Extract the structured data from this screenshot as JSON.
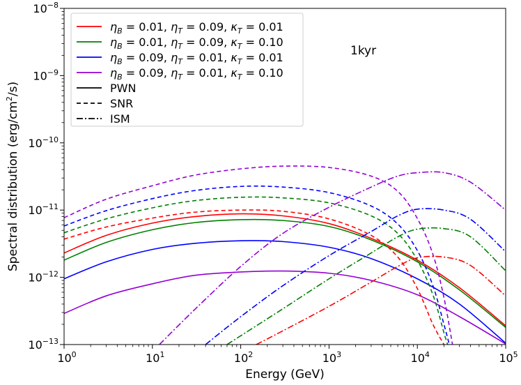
{
  "chart_data": {
    "type": "line",
    "title": "",
    "annotation": "1kyr",
    "xlabel": "Energy (GeV)",
    "ylabel_prefix": "Spectral distribution (erg/cm",
    "ylabel_sup": "2",
    "ylabel_suffix": "/s)",
    "xscale": "log",
    "yscale": "log",
    "xlim": [
      1,
      100000
    ],
    "ylim": [
      1e-13,
      1e-08
    ],
    "x_ticks": [
      {
        "base": "10",
        "exp": "0",
        "value": 1
      },
      {
        "base": "10",
        "exp": "1",
        "value": 10
      },
      {
        "base": "10",
        "exp": "2",
        "value": 100
      },
      {
        "base": "10",
        "exp": "3",
        "value": 1000
      },
      {
        "base": "10",
        "exp": "4",
        "value": 10000
      },
      {
        "base": "10",
        "exp": "5",
        "value": 100000
      }
    ],
    "y_ticks": [
      {
        "base": "10",
        "exp": "−13",
        "value": 1e-13
      },
      {
        "base": "10",
        "exp": "−12",
        "value": 1e-12
      },
      {
        "base": "10",
        "exp": "−11",
        "value": 1e-11
      },
      {
        "base": "10",
        "exp": "−10",
        "value": 1e-10
      },
      {
        "base": "10",
        "exp": "−9",
        "value": 1e-09
      },
      {
        "base": "10",
        "exp": "−8",
        "value": 1e-08
      }
    ],
    "legend": {
      "placement": "top-left",
      "entries": [
        {
          "kind": "color",
          "color": "#ff0000",
          "style": "solid",
          "text": "ηB = 0.01, ηT = 0.09, κT = 0.01"
        },
        {
          "kind": "color",
          "color": "#008000",
          "style": "solid",
          "text": "ηB = 0.01, ηT = 0.09, κT = 0.10"
        },
        {
          "kind": "color",
          "color": "#0000ff",
          "style": "solid",
          "text": "ηB = 0.09, ηT = 0.01, κT = 0.01"
        },
        {
          "kind": "color",
          "color": "#9400d3",
          "style": "solid",
          "text": "ηB = 0.09, ηT = 0.01, κT = 0.10"
        },
        {
          "kind": "style",
          "color": "#000000",
          "style": "solid",
          "text": "PWN"
        },
        {
          "kind": "style",
          "color": "#000000",
          "style": "dashed",
          "text": "SNR"
        },
        {
          "kind": "style",
          "color": "#000000",
          "style": "dashdot",
          "text": "ISM"
        }
      ]
    },
    "series": [
      {
        "name": "red PWN",
        "color": "#ff0000",
        "style": "solid",
        "x": [
          1,
          3,
          10,
          30,
          100,
          300,
          1000,
          3000,
          10000,
          30000,
          100000
        ],
        "y": [
          2.3e-12,
          4.2e-12,
          6.4e-12,
          8e-12,
          8.8e-12,
          8.2e-12,
          6.3e-12,
          3.8e-12,
          1.8e-12,
          7e-13,
          1.9e-13
        ]
      },
      {
        "name": "green PWN",
        "color": "#008000",
        "style": "solid",
        "x": [
          1,
          3,
          10,
          30,
          100,
          300,
          1000,
          3000,
          10000,
          30000,
          100000
        ],
        "y": [
          1.8e-12,
          3.3e-12,
          5.1e-12,
          6.5e-12,
          7.2e-12,
          7e-12,
          5.7e-12,
          3.6e-12,
          1.7e-12,
          6.5e-13,
          1.8e-13
        ]
      },
      {
        "name": "blue PWN",
        "color": "#0000ff",
        "style": "solid",
        "x": [
          1,
          3,
          10,
          30,
          100,
          300,
          1000,
          3000,
          10000,
          30000,
          100000
        ],
        "y": [
          9.5e-13,
          1.7e-12,
          2.6e-12,
          3.2e-12,
          3.5e-12,
          3.4e-12,
          2.8e-12,
          1.9e-12,
          9.5e-13,
          4e-13,
          1.05e-13
        ]
      },
      {
        "name": "purple PWN",
        "color": "#9400d3",
        "style": "solid",
        "x": [
          1,
          3,
          10,
          30,
          100,
          300,
          1000,
          3000,
          10000,
          30000,
          100000
        ],
        "y": [
          2.9e-13,
          5.3e-13,
          8e-13,
          1.07e-12,
          1.2e-12,
          1.24e-12,
          1.15e-12,
          9e-13,
          5.5e-13,
          2.6e-13,
          1.02e-13
        ]
      },
      {
        "name": "red SNR",
        "color": "#ff0000",
        "style": "dashed",
        "x": [
          1,
          3,
          10,
          30,
          100,
          300,
          1000,
          3000,
          6000,
          10000,
          15000,
          20000
        ],
        "y": [
          3.7e-12,
          5.6e-12,
          7.6e-12,
          9.3e-12,
          1e-11,
          9.6e-12,
          7.4e-12,
          4.2e-12,
          2e-12,
          6.8e-13,
          2e-13,
          1e-13
        ]
      },
      {
        "name": "green SNR",
        "color": "#008000",
        "style": "dashed",
        "x": [
          1,
          3,
          10,
          30,
          100,
          300,
          1000,
          3000,
          6000,
          10000,
          15000,
          20000,
          22000
        ],
        "y": [
          4.6e-12,
          7.4e-12,
          1.08e-11,
          1.38e-11,
          1.55e-11,
          1.52e-11,
          1.28e-11,
          8.2e-12,
          4.5e-12,
          1.8e-12,
          5.5e-13,
          1.5e-13,
          1e-13
        ]
      },
      {
        "name": "blue SNR",
        "color": "#0000ff",
        "style": "dashed",
        "x": [
          1,
          3,
          10,
          30,
          100,
          300,
          1000,
          3000,
          6000,
          10000,
          15000,
          20000,
          23000
        ],
        "y": [
          5.8e-12,
          9.8e-12,
          1.48e-11,
          1.95e-11,
          2.25e-11,
          2.2e-11,
          1.82e-11,
          1.15e-11,
          6.2e-12,
          2.5e-12,
          7.5e-13,
          2e-13,
          1e-13
        ]
      },
      {
        "name": "purple SNR",
        "color": "#9400d3",
        "style": "dashed",
        "x": [
          1,
          3,
          10,
          30,
          100,
          300,
          1000,
          3000,
          6000,
          10000,
          15000,
          20000,
          25000
        ],
        "y": [
          7.7e-12,
          1.45e-11,
          2.3e-11,
          3.3e-11,
          4.1e-11,
          4.5e-11,
          4.3e-11,
          3.2e-11,
          1.9e-11,
          7.5e-12,
          2.2e-12,
          5e-13,
          1e-13
        ]
      },
      {
        "name": "red ISM",
        "color": "#ff0000",
        "style": "dashdot",
        "x": [
          150,
          300,
          1000,
          3000,
          6000,
          10000,
          20000,
          40000,
          100000
        ],
        "y": [
          1e-13,
          1.6e-13,
          3.7e-13,
          8.5e-13,
          1.45e-12,
          1.95e-12,
          2e-12,
          1.5e-12,
          5.3e-13
        ]
      },
      {
        "name": "green ISM",
        "color": "#008000",
        "style": "dashdot",
        "x": [
          70,
          100,
          300,
          1000,
          3000,
          6000,
          10000,
          20000,
          40000,
          100000
        ],
        "y": [
          1e-13,
          1.35e-13,
          3.4e-13,
          9.5e-13,
          2.3e-12,
          4e-12,
          5.2e-12,
          5.3e-12,
          4e-12,
          1.25e-12
        ]
      },
      {
        "name": "blue ISM",
        "color": "#0000ff",
        "style": "dashdot",
        "x": [
          40,
          100,
          300,
          1000,
          3000,
          6000,
          10000,
          20000,
          40000,
          100000
        ],
        "y": [
          1e-13,
          2.6e-13,
          7.5e-13,
          2.1e-12,
          4.8e-12,
          8.2e-12,
          1.03e-11,
          1e-11,
          7.3e-12,
          2.4e-12
        ]
      },
      {
        "name": "purple ISM",
        "color": "#9400d3",
        "style": "dashdot",
        "x": [
          12,
          30,
          100,
          300,
          1000,
          3000,
          6000,
          10000,
          20000,
          40000,
          100000
        ],
        "y": [
          1e-13,
          3.3e-13,
          1.45e-12,
          4.5e-12,
          1.1e-11,
          2.2e-11,
          3.2e-11,
          3.6e-11,
          3.6e-11,
          2.6e-11,
          1e-11
        ]
      }
    ]
  }
}
